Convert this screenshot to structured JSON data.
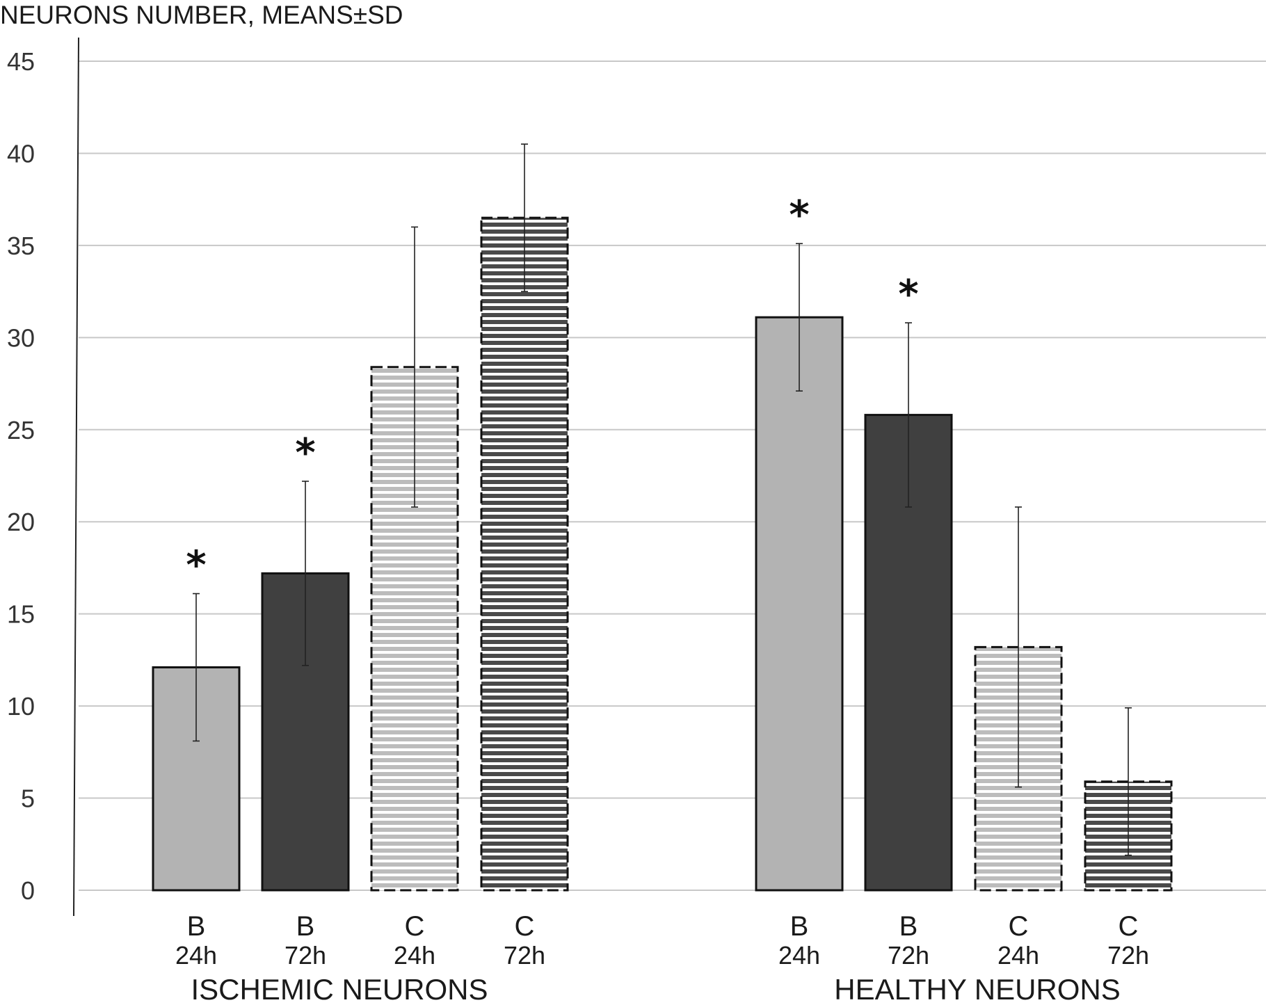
{
  "chart_data": {
    "type": "bar",
    "ylabel": "NEURONS NUMBER, MEANS±SD",
    "ylim": [
      0,
      45
    ],
    "yticks": [
      0,
      5,
      10,
      15,
      20,
      25,
      30,
      35,
      40,
      45
    ],
    "grid": true,
    "colors": {
      "B_24h": "#b3b3b3",
      "B_72h": "#404040",
      "C_24h": "#bcbcbc",
      "C_72h": "#4a4a4a",
      "grid": "#c8c8c8",
      "axis": "#222222"
    },
    "groups": [
      {
        "name": "ISCHEMIC NEURONS",
        "bars": [
          {
            "letter": "B",
            "time": "24h",
            "value": 12.1,
            "sd": 4.0,
            "significant": true,
            "star": "*"
          },
          {
            "letter": "B",
            "time": "72h",
            "value": 17.2,
            "sd": 5.0,
            "significant": true,
            "star": "*"
          },
          {
            "letter": "C",
            "time": "24h",
            "value": 28.4,
            "sd": 7.6,
            "significant": false,
            "star": ""
          },
          {
            "letter": "C",
            "time": "72h",
            "value": 36.5,
            "sd": 4.0,
            "significant": false,
            "star": ""
          }
        ]
      },
      {
        "name": "HEALTHY NEURONS",
        "bars": [
          {
            "letter": "B",
            "time": "24h",
            "value": 31.1,
            "sd": 4.0,
            "significant": true,
            "star": "*"
          },
          {
            "letter": "B",
            "time": "72h",
            "value": 25.8,
            "sd": 5.0,
            "significant": true,
            "star": "*"
          },
          {
            "letter": "C",
            "time": "24h",
            "value": 13.2,
            "sd": 7.6,
            "significant": false,
            "star": ""
          },
          {
            "letter": "C",
            "time": "72h",
            "value": 5.9,
            "sd": 4.0,
            "significant": false,
            "star": ""
          }
        ]
      }
    ]
  }
}
